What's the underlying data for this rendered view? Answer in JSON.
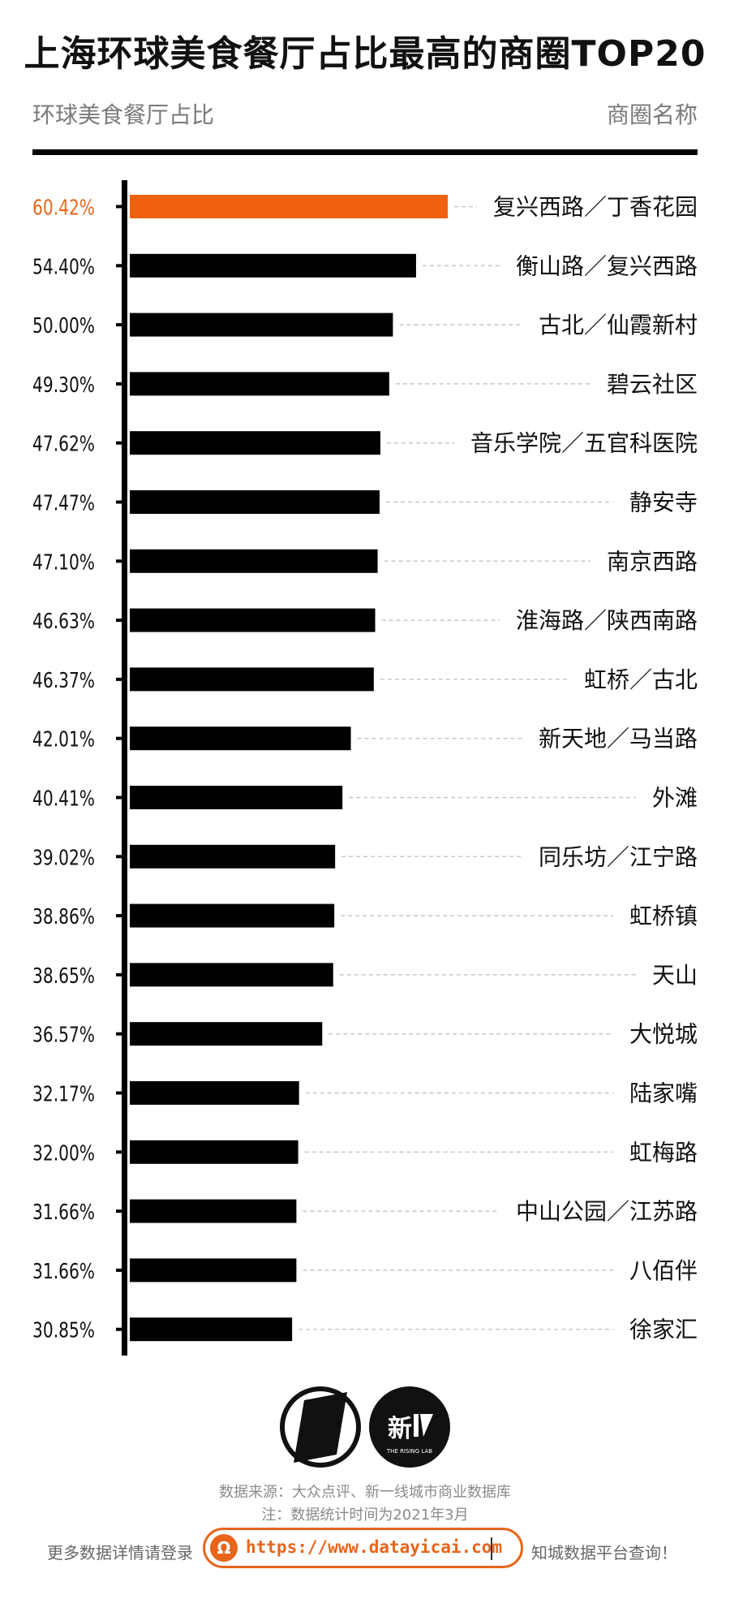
{
  "title": "上海环球美食餐厅占比最高的商圈TOP20",
  "subtitle_left": "环球美食餐厅占比",
  "subtitle_right": "商圈名称",
  "chart_data": {
    "type": "bar",
    "orientation": "horizontal",
    "highlight_color": "#f0620f",
    "bar_color": "#000000",
    "value_label_highlight_color": "#e8651b",
    "categories": [
      "复兴西路／丁香花园",
      "衡山路／复兴西路",
      "古北／仙霞新村",
      "碧云社区",
      "音乐学院／五官科医院",
      "静安寺",
      "南京西路",
      "淮海路／陕西南路",
      "虹桥／古北",
      "新天地／马当路",
      "外滩",
      "同乐坊／江宁路",
      "虹桥镇",
      "天山",
      "大悦城",
      "陆家嘴",
      "虹梅路",
      "中山公园／江苏路",
      "八佰伴",
      "徐家汇"
    ],
    "value_labels": [
      "60.42%",
      "54.40%",
      "50.00%",
      "49.30%",
      "47.62%",
      "47.47%",
      "47.10%",
      "46.63%",
      "46.37%",
      "42.01%",
      "40.41%",
      "39.02%",
      "38.86%",
      "38.65%",
      "36.57%",
      "32.17%",
      "32.00%",
      "31.66%",
      "31.66%",
      "30.85%"
    ],
    "values": [
      60.42,
      54.4,
      50.0,
      49.3,
      47.62,
      47.47,
      47.1,
      46.63,
      46.37,
      42.01,
      40.41,
      39.02,
      38.86,
      38.65,
      36.57,
      32.17,
      32.0,
      31.66,
      31.66,
      30.85
    ],
    "highlight_index": 0,
    "xlim": [
      0,
      60.42
    ]
  },
  "logo": {
    "brand_text": "新",
    "brand_sub": "THE RISING LAB"
  },
  "source_line1": "数据来源：大众点评、新一线城市商业数据库",
  "source_line2": "注：数据统计时间为2021年3月",
  "footer": {
    "left": "更多数据详情请登录",
    "url": "https://www.datayicai.com",
    "right": "知城数据平台查询！",
    "accent": "#e8651b"
  }
}
